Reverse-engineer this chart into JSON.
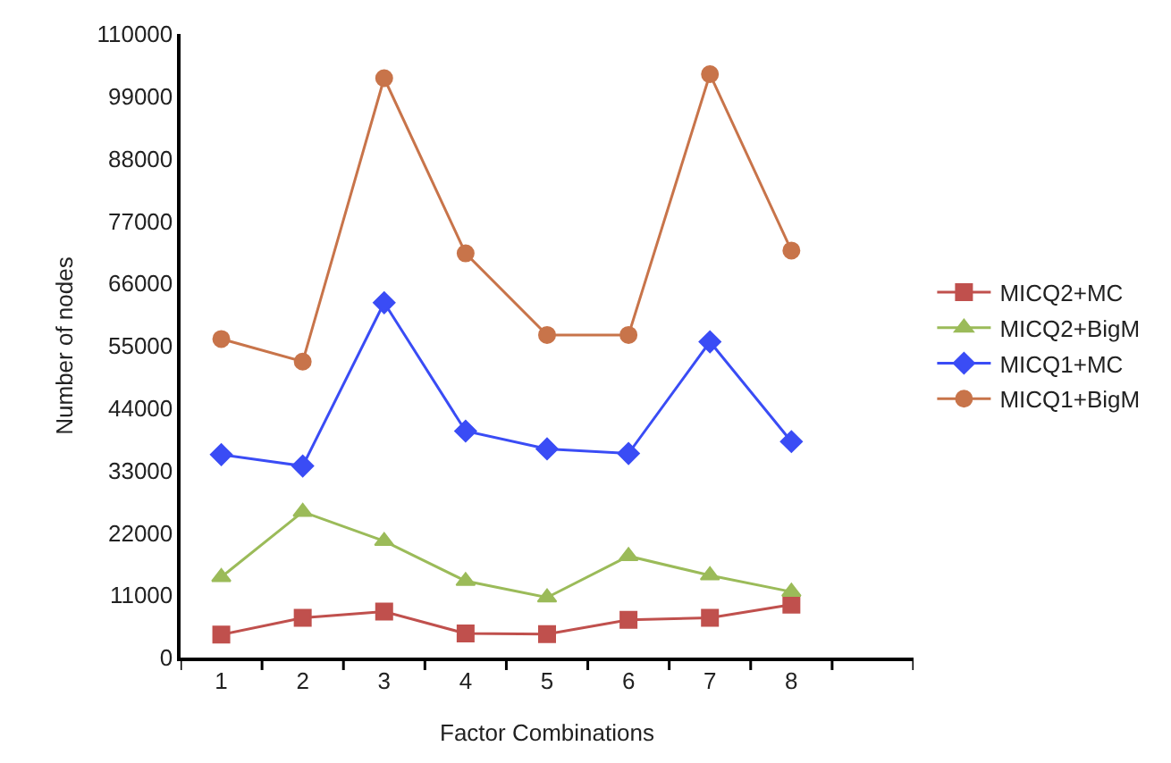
{
  "chart_data": {
    "type": "line",
    "xlabel": "Factor Combinations",
    "ylabel": "Number of nodes",
    "categories": [
      "1",
      "2",
      "3",
      "4",
      "5",
      "6",
      "7",
      "8",
      null
    ],
    "series": [
      {
        "name": "MICQ2+MC",
        "color": "#c0504d",
        "marker": "square",
        "values": [
          4050,
          7000,
          8100,
          4250,
          4150,
          6650,
          7000,
          9350,
          null
        ]
      },
      {
        "name": "MICQ2+BigM",
        "color": "#9bbb59",
        "marker": "triangle",
        "values": [
          14200,
          25700,
          20550,
          13500,
          10600,
          17900,
          14500,
          11600,
          null
        ]
      },
      {
        "name": "MICQ1+MC",
        "color": "#3a4cf5",
        "marker": "diamond",
        "values": [
          35800,
          33800,
          62600,
          39950,
          36800,
          36000,
          55700,
          38100,
          null
        ]
      },
      {
        "name": "MICQ1+BigM",
        "color": "#c8744a",
        "marker": "circle",
        "values": [
          56200,
          52200,
          102200,
          71300,
          56900,
          56900,
          102900,
          71800,
          null
        ]
      }
    ],
    "ylim": [
      0,
      110000
    ],
    "yticks": [
      0,
      11000,
      22000,
      33000,
      44000,
      55000,
      66000,
      77000,
      88000,
      99000,
      110000
    ],
    "grid": false,
    "legend": "right",
    "line_style": "solid"
  }
}
